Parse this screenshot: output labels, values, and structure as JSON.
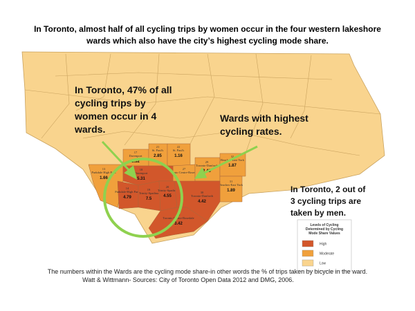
{
  "header": {
    "title_lines": [
      "In Toronto,  almost half of all cycling trips by women occur in the four western lakeshore",
      "wards which also have the city’s highest cycling mode share."
    ]
  },
  "annotations": {
    "women_wards": [
      "In Toronto, 47% of all",
      "cycling trips by",
      "women occur in 4",
      "wards."
    ],
    "highest": [
      "Wards with highest",
      "cycling rates."
    ],
    "men": [
      "In Toronto,  2 out of",
      "3 cycling trips are",
      "taken by men."
    ]
  },
  "legend": {
    "title": [
      "Levels of Cycling",
      "Determined by Cycling",
      "Mode Share Values"
    ],
    "items": [
      {
        "label": "High",
        "color": "#d2572b"
      },
      {
        "label": "Moderate",
        "color": "#f0a03c"
      },
      {
        "label": "Low",
        "color": "#f9d48e"
      }
    ]
  },
  "wards": [
    {
      "number": "13",
      "name": "Parkdale High Park",
      "mode_share": 1.66,
      "color": "#f0a03c"
    },
    {
      "number": "17",
      "name": "Davenport",
      "mode_share": 1.32,
      "color": "#f0a03c"
    },
    {
      "number": "21",
      "name": "St. Paul's",
      "mode_share": 2.85,
      "color": "#f0a03c"
    },
    {
      "number": "22",
      "name": "St. Paul's",
      "mode_share": 1.16,
      "color": "#f0a03c"
    },
    {
      "number": "27",
      "name": "Toronto Centre-Rosedale",
      "mode_share": null,
      "color": "#f0a03c"
    },
    {
      "number": "29",
      "name": "Toronto-Danforth",
      "mode_share": 2.43,
      "color": "#f0a03c"
    },
    {
      "number": "32",
      "name": "Beaches-East York",
      "mode_share": 1.87,
      "color": "#f0a03c"
    },
    {
      "number": "31",
      "name": "Beaches-East York",
      "mode_share": 1.89,
      "color": "#f0a03c"
    },
    {
      "number": "18",
      "name": "Davenport",
      "mode_share": 5.31,
      "color": "#d2572b"
    },
    {
      "number": "14",
      "name": "Parkdale-High Park",
      "mode_share": 4.79,
      "color": "#d2572b"
    },
    {
      "number": "19",
      "name": "Trinity-Spadina",
      "mode_share": 7.5,
      "color": "#d2572b"
    },
    {
      "number": "20",
      "name": "Trinity-Spadina",
      "mode_share": 4.55,
      "color": "#d2572b"
    },
    {
      "number": "30",
      "name": "Toronto-Danforth",
      "mode_share": 4.42,
      "color": "#d2572b"
    },
    {
      "number": "28",
      "name": "Toronto Centre-Rosedale",
      "mode_share": 3.42,
      "color": "#d2572b"
    }
  ],
  "footer": {
    "lines": [
      "The numbers within the Wards are the cycling mode share-in other words the % of trips taken by bicycle in the ward.",
      "Watt & Wittmann- Sources: City of Toronto Open Data 2012 and DMG, 2006."
    ]
  }
}
